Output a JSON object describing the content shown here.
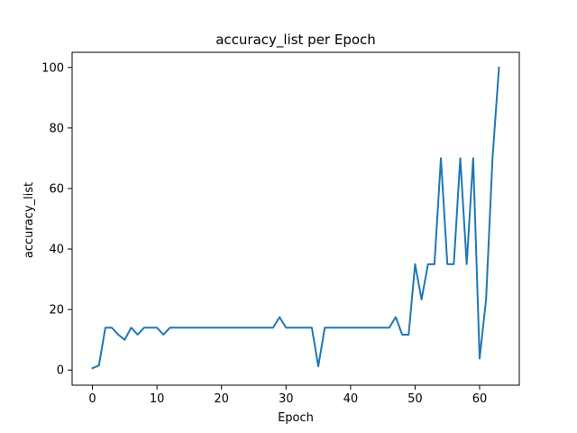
{
  "chart_data": {
    "type": "line",
    "title": "accuracy_list per Epoch",
    "xlabel": "Epoch",
    "ylabel": "accuracy_list",
    "xlim": [
      -3.15,
      66.15
    ],
    "ylim": [
      -5,
      105
    ],
    "xticks": [
      0,
      10,
      20,
      30,
      40,
      50,
      60
    ],
    "yticks": [
      0,
      20,
      40,
      60,
      80,
      100
    ],
    "grid": false,
    "series": [
      {
        "color": "#1f77b4",
        "x": [
          0,
          1,
          2,
          3,
          4,
          5,
          6,
          7,
          8,
          9,
          10,
          11,
          12,
          13,
          14,
          15,
          16,
          17,
          18,
          19,
          20,
          21,
          22,
          23,
          24,
          25,
          26,
          27,
          28,
          29,
          30,
          31,
          32,
          33,
          34,
          35,
          36,
          37,
          38,
          39,
          40,
          41,
          42,
          43,
          44,
          45,
          46,
          47,
          48,
          49,
          50,
          51,
          52,
          53,
          54,
          55,
          56,
          57,
          58,
          59,
          60,
          61,
          62,
          63
        ],
        "values": [
          0.6,
          1.5,
          14,
          14,
          11.7,
          10,
          14,
          11.7,
          14,
          14,
          14,
          11.7,
          14,
          14,
          14,
          14,
          14,
          14,
          14,
          14,
          14,
          14,
          14,
          14,
          14,
          14,
          14,
          14,
          14,
          17.5,
          14,
          14,
          14,
          14,
          14,
          1.2,
          14,
          14,
          14,
          14,
          14,
          14,
          14,
          14,
          14,
          14,
          14,
          17.5,
          11.7,
          11.7,
          35,
          23.3,
          35,
          35,
          70,
          35,
          35,
          70,
          35,
          70,
          3.8,
          23.3,
          70,
          100
        ]
      }
    ]
  }
}
